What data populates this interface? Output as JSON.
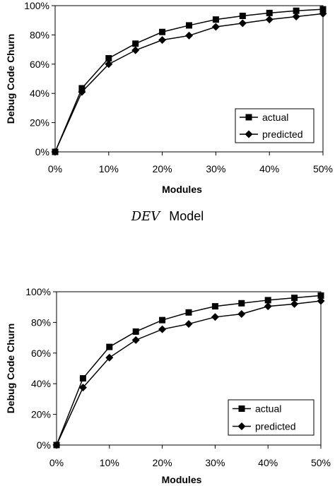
{
  "caption": {
    "italic": "DEV",
    "plain": "Model"
  },
  "chart_data": [
    {
      "type": "line",
      "title": "",
      "xlabel": "Modules",
      "ylabel": "Debug Code Churn",
      "x": [
        0,
        5,
        10,
        15,
        20,
        25,
        30,
        35,
        40,
        45,
        50
      ],
      "x_ticks": [
        "0%",
        "10%",
        "20%",
        "30%",
        "40%",
        "50%"
      ],
      "y_ticks": [
        "0%",
        "20%",
        "40%",
        "60%",
        "80%",
        "100%"
      ],
      "xlim": [
        0,
        50
      ],
      "ylim": [
        0,
        100
      ],
      "grid": false,
      "legend": "bottom-right",
      "series": [
        {
          "name": "actual",
          "marker": "square",
          "values": [
            0,
            43.5,
            64,
            74,
            82,
            86.5,
            90.5,
            93,
            95,
            96.5,
            97.5
          ]
        },
        {
          "name": "predicted",
          "marker": "diamond",
          "values": [
            0,
            41,
            60,
            69.5,
            76.5,
            79.5,
            85.5,
            88,
            90.5,
            92.5,
            94.5
          ]
        }
      ]
    },
    {
      "type": "line",
      "title": "",
      "xlabel": "Modules",
      "ylabel": "Debug Code Churn",
      "x": [
        0,
        5,
        10,
        15,
        20,
        25,
        30,
        35,
        40,
        45,
        50
      ],
      "x_ticks": [
        "0%",
        "10%",
        "20%",
        "30%",
        "40%",
        "50%"
      ],
      "y_ticks": [
        "0%",
        "20%",
        "40%",
        "60%",
        "80%",
        "100%"
      ],
      "xlim": [
        0,
        50
      ],
      "ylim": [
        0,
        100
      ],
      "grid": false,
      "legend": "bottom-right",
      "series": [
        {
          "name": "actual",
          "marker": "square",
          "values": [
            0,
            43.5,
            64,
            74,
            81.5,
            86.5,
            90.5,
            92.5,
            94.5,
            96,
            97.5
          ]
        },
        {
          "name": "predicted",
          "marker": "diamond",
          "values": [
            0,
            37.5,
            57,
            68.5,
            75.5,
            79,
            83.5,
            85.5,
            90.5,
            92,
            94
          ]
        }
      ]
    }
  ]
}
